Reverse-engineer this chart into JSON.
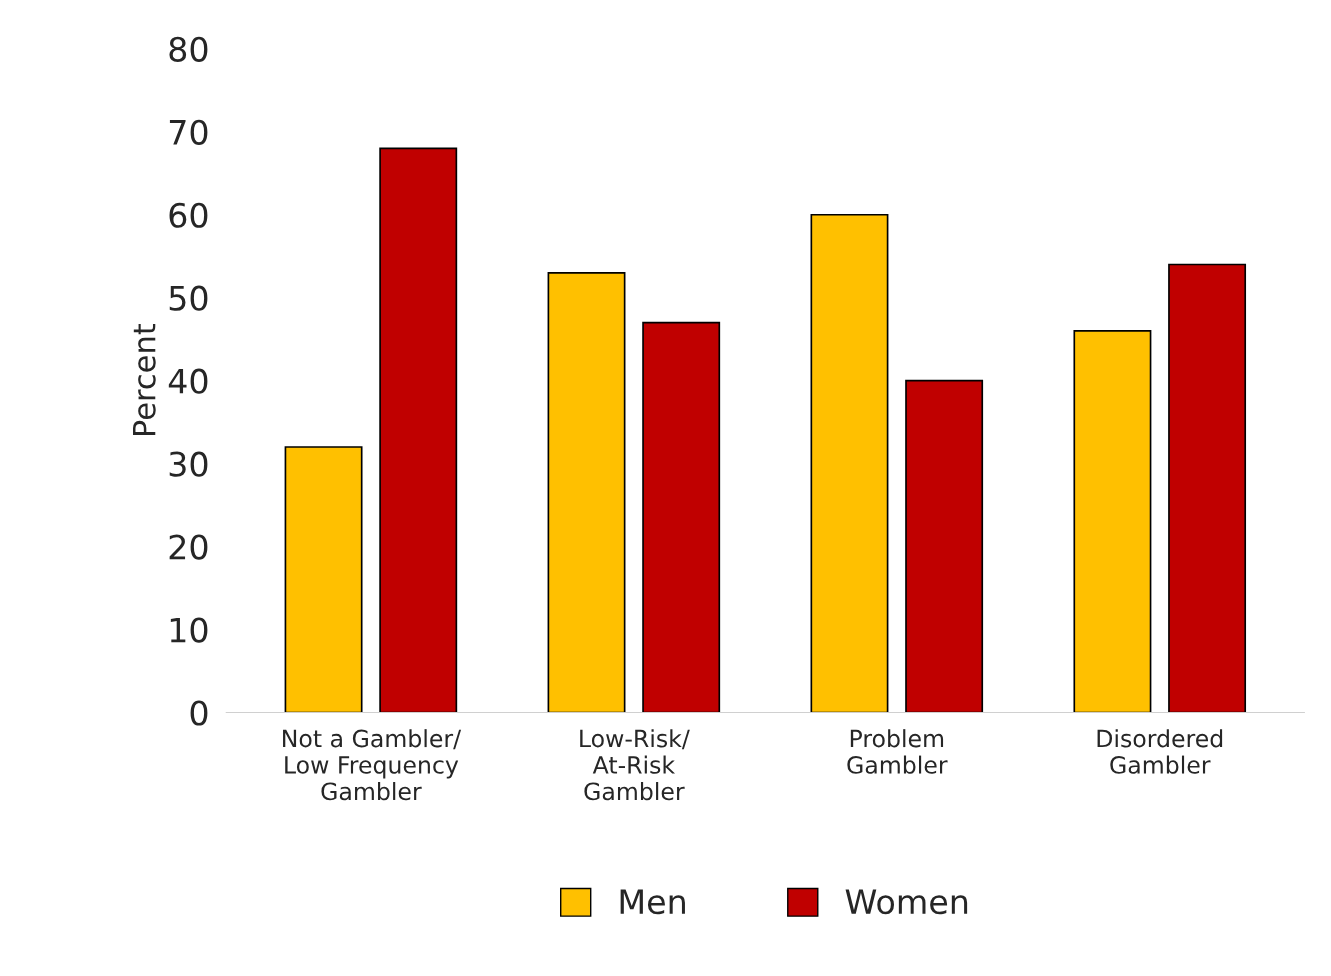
{
  "chart_data": {
    "type": "bar",
    "ylabel": "Percent",
    "categories": [
      "Not a Gambler/\nLow Frequency\nGambler",
      "Low-Risk/\nAt-Risk\nGambler",
      "Problem\nGambler",
      "Disordered\nGambler"
    ],
    "series": [
      {
        "name": "Men",
        "color": "#ffc000",
        "values": [
          32,
          53,
          60,
          46
        ]
      },
      {
        "name": "Women",
        "color": "#c00000",
        "values": [
          68,
          47,
          40,
          54
        ]
      }
    ],
    "ylim": [
      0,
      80
    ],
    "yticks": [
      0,
      10,
      20,
      30,
      40,
      50,
      60,
      70,
      80
    ],
    "grid": false,
    "legend": "bottom"
  }
}
